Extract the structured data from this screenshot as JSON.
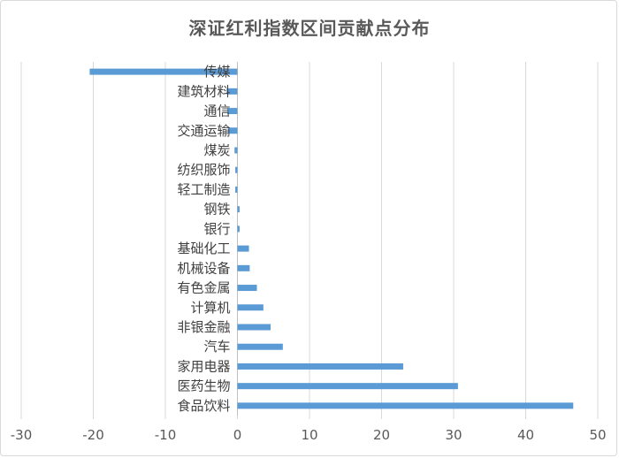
{
  "chart_data": {
    "type": "bar",
    "orientation": "horizontal",
    "title": "深证红利指数区间贡献点分布",
    "xlabel": "",
    "ylabel": "",
    "xlim": [
      -30,
      50
    ],
    "xticks": [
      -30,
      -20,
      -10,
      0,
      10,
      20,
      30,
      40,
      50
    ],
    "grid": "vertical",
    "legend": "none",
    "bar_color": "#5b9bd5",
    "categories": [
      "传媒",
      "建筑材料",
      "通信",
      "交通运输",
      "煤炭",
      "纺织服饰",
      "轻工制造",
      "钢铁",
      "银行",
      "基础化工",
      "机械设备",
      "有色金属",
      "计算机",
      "非银金融",
      "汽车",
      "家用电器",
      "医药生物",
      "食品饮料"
    ],
    "values": [
      -20.5,
      -1.5,
      -1.4,
      -1.3,
      -0.4,
      -0.3,
      -0.3,
      0.3,
      0.3,
      1.6,
      1.7,
      2.7,
      3.6,
      4.6,
      6.3,
      23.0,
      30.6,
      46.6
    ]
  }
}
